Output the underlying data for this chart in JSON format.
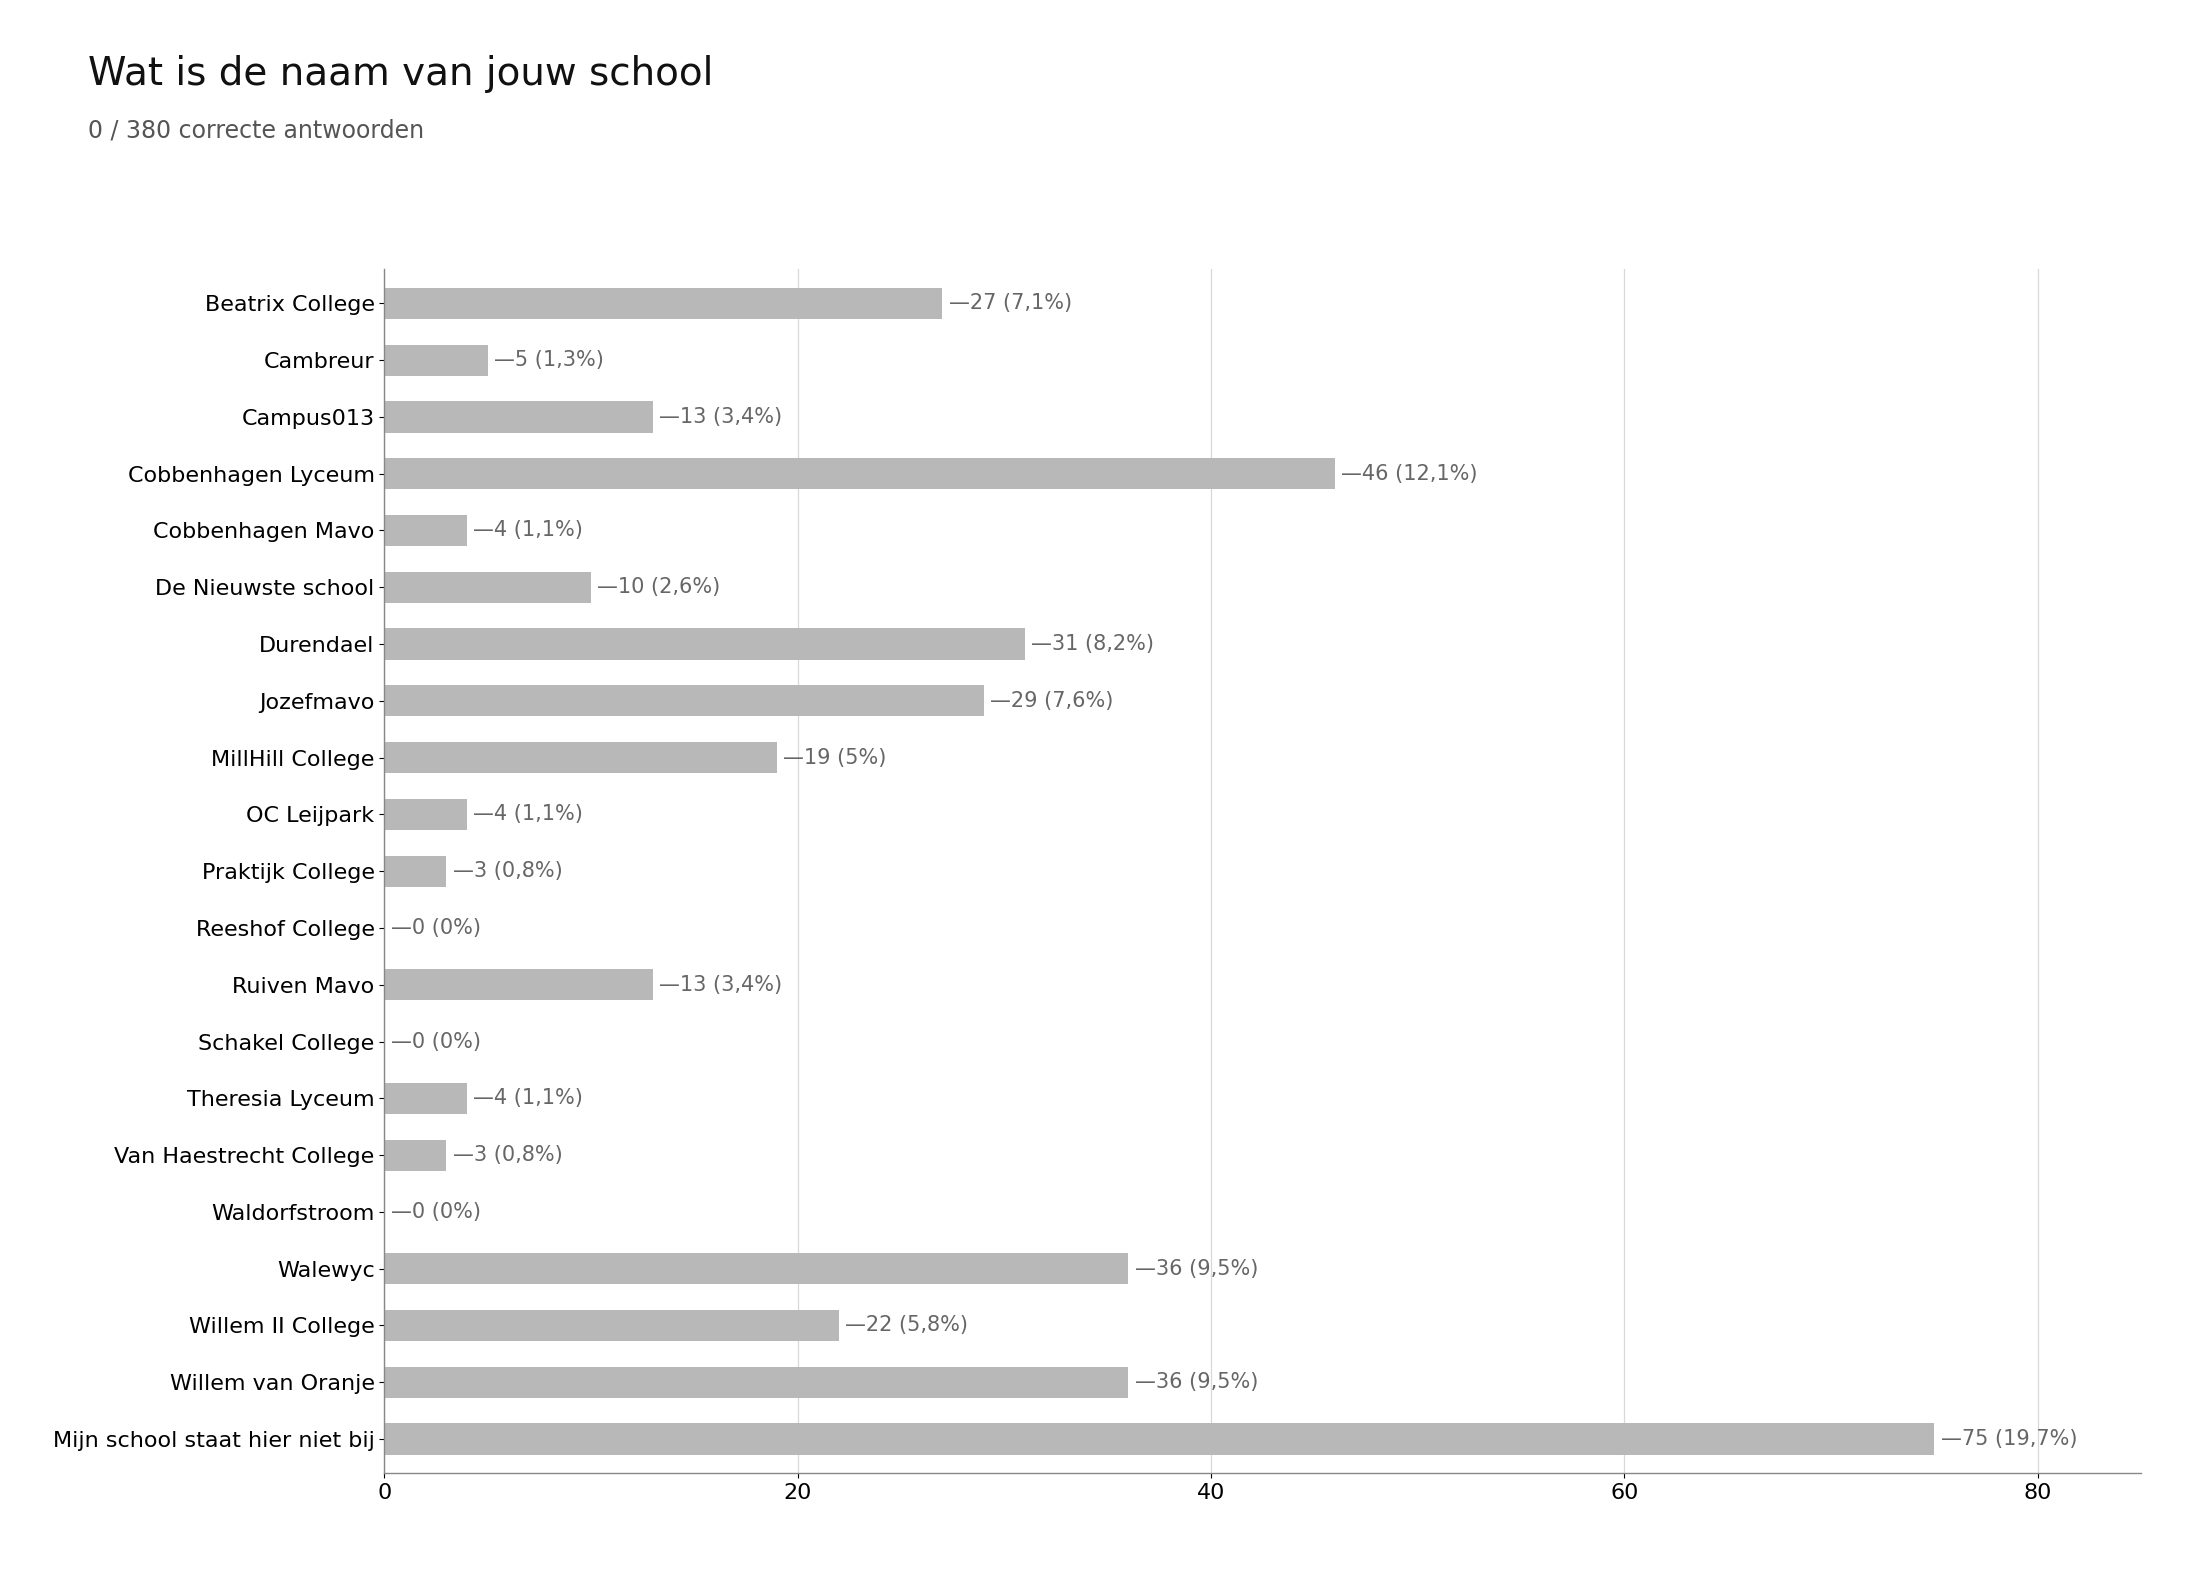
{
  "title": "Wat is de naam van jouw school",
  "subtitle": "0 / 380 correcte antwoorden",
  "categories": [
    "Beatrix College",
    "Cambreur",
    "Campus013",
    "Cobbenhagen Lyceum",
    "Cobbenhagen Mavo",
    "De Nieuwste school",
    "Durendael",
    "Jozefmavo",
    "MillHill College",
    "OC Leijpark",
    "Praktijk College",
    "Reeshof College",
    "Ruiven Mavo",
    "Schakel College",
    "Theresia Lyceum",
    "Van Haestrecht College",
    "Waldorfstroom",
    "Walewyc",
    "Willem II College",
    "Willem van Oranje",
    "Mijn school staat hier niet bij"
  ],
  "values": [
    27,
    5,
    13,
    46,
    4,
    10,
    31,
    29,
    19,
    4,
    3,
    0,
    13,
    0,
    4,
    3,
    0,
    36,
    22,
    36,
    75
  ],
  "labels": [
    "27 (7,1%)",
    "5 (1,3%)",
    "13 (3,4%)",
    "46 (12,1%)",
    "4 (1,1%)",
    "10 (2,6%)",
    "31 (8,2%)",
    "29 (7,6%)",
    "19 (5%)",
    "4 (1,1%)",
    "3 (0,8%)",
    "0 (0%)",
    "13 (3,4%)",
    "0 (0%)",
    "4 (1,1%)",
    "3 (0,8%)",
    "0 (0%)",
    "36 (9,5%)",
    "22 (5,8%)",
    "36 (9,5%)",
    "75 (19,7%)"
  ],
  "bar_color": "#b8b8b8",
  "background_color": "#ffffff",
  "title_fontsize": 28,
  "subtitle_fontsize": 17,
  "label_fontsize": 15,
  "tick_fontsize": 16,
  "xlim": [
    0,
    85
  ],
  "xticks": [
    0,
    20,
    40,
    60,
    80
  ],
  "bar_height": 0.55
}
